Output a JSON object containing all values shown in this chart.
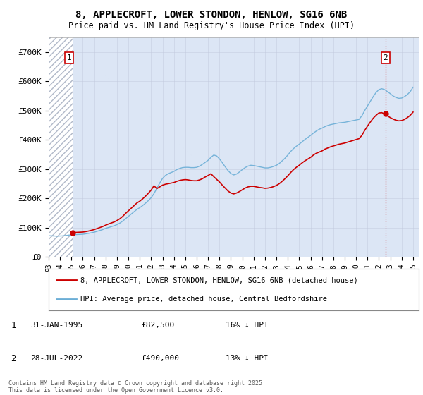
{
  "title_line1": "8, APPLECROFT, LOWER STONDON, HENLOW, SG16 6NB",
  "title_line2": "Price paid vs. HM Land Registry's House Price Index (HPI)",
  "background_color": "#ffffff",
  "plot_bg_color": "#dce6f5",
  "sale1_date": 1995.08,
  "sale1_price": 82500,
  "sale2_date": 2022.57,
  "sale2_price": 490000,
  "legend_line1": "8, APPLECROFT, LOWER STONDON, HENLOW, SG16 6NB (detached house)",
  "legend_line2": "HPI: Average price, detached house, Central Bedfordshire",
  "footer": "Contains HM Land Registry data © Crown copyright and database right 2025.\nThis data is licensed under the Open Government Licence v3.0.",
  "red_line_color": "#cc0000",
  "blue_line_color": "#6baed6",
  "ylim": [
    0,
    750000
  ],
  "yticks": [
    0,
    100000,
    200000,
    300000,
    400000,
    500000,
    600000,
    700000
  ],
  "ytick_labels": [
    "£0",
    "£100K",
    "£200K",
    "£300K",
    "£400K",
    "£500K",
    "£600K",
    "£700K"
  ],
  "hpi_data": [
    [
      1993.0,
      72000
    ],
    [
      1993.25,
      71500
    ],
    [
      1993.5,
      71000
    ],
    [
      1993.75,
      70500
    ],
    [
      1994.0,
      71000
    ],
    [
      1994.25,
      71500
    ],
    [
      1994.5,
      72500
    ],
    [
      1994.75,
      74000
    ],
    [
      1995.0,
      75000
    ],
    [
      1995.25,
      75500
    ],
    [
      1995.5,
      76000
    ],
    [
      1995.75,
      76500
    ],
    [
      1996.0,
      77000
    ],
    [
      1996.25,
      78500
    ],
    [
      1996.5,
      80000
    ],
    [
      1996.75,
      82000
    ],
    [
      1997.0,
      84000
    ],
    [
      1997.25,
      87000
    ],
    [
      1997.5,
      90000
    ],
    [
      1997.75,
      93000
    ],
    [
      1998.0,
      97000
    ],
    [
      1998.25,
      100000
    ],
    [
      1998.5,
      103000
    ],
    [
      1998.75,
      106000
    ],
    [
      1999.0,
      110000
    ],
    [
      1999.25,
      115000
    ],
    [
      1999.5,
      122000
    ],
    [
      1999.75,
      130000
    ],
    [
      2000.0,
      138000
    ],
    [
      2000.25,
      146000
    ],
    [
      2000.5,
      154000
    ],
    [
      2000.75,
      162000
    ],
    [
      2001.0,
      168000
    ],
    [
      2001.25,
      175000
    ],
    [
      2001.5,
      183000
    ],
    [
      2001.75,
      192000
    ],
    [
      2002.0,
      202000
    ],
    [
      2002.25,
      216000
    ],
    [
      2002.5,
      234000
    ],
    [
      2002.75,
      252000
    ],
    [
      2003.0,
      268000
    ],
    [
      2003.25,
      278000
    ],
    [
      2003.5,
      284000
    ],
    [
      2003.75,
      288000
    ],
    [
      2004.0,
      292000
    ],
    [
      2004.25,
      298000
    ],
    [
      2004.5,
      302000
    ],
    [
      2004.75,
      305000
    ],
    [
      2005.0,
      306000
    ],
    [
      2005.25,
      306000
    ],
    [
      2005.5,
      305000
    ],
    [
      2005.75,
      305000
    ],
    [
      2006.0,
      306000
    ],
    [
      2006.25,
      310000
    ],
    [
      2006.5,
      316000
    ],
    [
      2006.75,
      323000
    ],
    [
      2007.0,
      330000
    ],
    [
      2007.25,
      340000
    ],
    [
      2007.5,
      348000
    ],
    [
      2007.75,
      345000
    ],
    [
      2008.0,
      335000
    ],
    [
      2008.25,
      322000
    ],
    [
      2008.5,
      308000
    ],
    [
      2008.75,
      295000
    ],
    [
      2009.0,
      285000
    ],
    [
      2009.25,
      280000
    ],
    [
      2009.5,
      283000
    ],
    [
      2009.75,
      290000
    ],
    [
      2010.0,
      298000
    ],
    [
      2010.25,
      305000
    ],
    [
      2010.5,
      310000
    ],
    [
      2010.75,
      313000
    ],
    [
      2011.0,
      312000
    ],
    [
      2011.25,
      310000
    ],
    [
      2011.5,
      308000
    ],
    [
      2011.75,
      306000
    ],
    [
      2012.0,
      304000
    ],
    [
      2012.25,
      304000
    ],
    [
      2012.5,
      306000
    ],
    [
      2012.75,
      309000
    ],
    [
      2013.0,
      313000
    ],
    [
      2013.25,
      319000
    ],
    [
      2013.5,
      328000
    ],
    [
      2013.75,
      337000
    ],
    [
      2014.0,
      348000
    ],
    [
      2014.25,
      360000
    ],
    [
      2014.5,
      370000
    ],
    [
      2014.75,
      378000
    ],
    [
      2015.0,
      385000
    ],
    [
      2015.25,
      393000
    ],
    [
      2015.5,
      401000
    ],
    [
      2015.75,
      408000
    ],
    [
      2016.0,
      415000
    ],
    [
      2016.25,
      423000
    ],
    [
      2016.5,
      430000
    ],
    [
      2016.75,
      436000
    ],
    [
      2017.0,
      440000
    ],
    [
      2017.25,
      445000
    ],
    [
      2017.5,
      449000
    ],
    [
      2017.75,
      452000
    ],
    [
      2018.0,
      454000
    ],
    [
      2018.25,
      456000
    ],
    [
      2018.5,
      458000
    ],
    [
      2018.75,
      459000
    ],
    [
      2019.0,
      460000
    ],
    [
      2019.25,
      462000
    ],
    [
      2019.5,
      464000
    ],
    [
      2019.75,
      466000
    ],
    [
      2020.0,
      468000
    ],
    [
      2020.25,
      470000
    ],
    [
      2020.5,
      482000
    ],
    [
      2020.75,
      500000
    ],
    [
      2021.0,
      516000
    ],
    [
      2021.25,
      532000
    ],
    [
      2021.5,
      548000
    ],
    [
      2021.75,
      562000
    ],
    [
      2022.0,
      572000
    ],
    [
      2022.25,
      575000
    ],
    [
      2022.5,
      572000
    ],
    [
      2022.75,
      565000
    ],
    [
      2023.0,
      558000
    ],
    [
      2023.25,
      550000
    ],
    [
      2023.5,
      545000
    ],
    [
      2023.75,
      542000
    ],
    [
      2024.0,
      543000
    ],
    [
      2024.25,
      548000
    ],
    [
      2024.5,
      555000
    ],
    [
      2024.75,
      565000
    ],
    [
      2025.0,
      580000
    ]
  ],
  "red_data": [
    [
      1995.08,
      82500
    ],
    [
      1995.25,
      83000
    ],
    [
      1995.5,
      83500
    ],
    [
      1995.75,
      84000
    ],
    [
      1996.0,
      84500
    ],
    [
      1996.25,
      86000
    ],
    [
      1996.5,
      88000
    ],
    [
      1996.75,
      90500
    ],
    [
      1997.0,
      93000
    ],
    [
      1997.25,
      96500
    ],
    [
      1997.5,
      100000
    ],
    [
      1997.75,
      103500
    ],
    [
      1998.0,
      108000
    ],
    [
      1998.25,
      112000
    ],
    [
      1998.5,
      115500
    ],
    [
      1998.75,
      119000
    ],
    [
      1999.0,
      124000
    ],
    [
      1999.25,
      130000
    ],
    [
      1999.5,
      138000
    ],
    [
      1999.75,
      148000
    ],
    [
      2000.0,
      157000
    ],
    [
      2000.25,
      166000
    ],
    [
      2000.5,
      175000
    ],
    [
      2000.75,
      184000
    ],
    [
      2001.0,
      190000
    ],
    [
      2001.25,
      198000
    ],
    [
      2001.5,
      207000
    ],
    [
      2001.75,
      217000
    ],
    [
      2002.0,
      228000
    ],
    [
      2002.25,
      243000
    ],
    [
      2002.5,
      233000
    ],
    [
      2002.75,
      239000
    ],
    [
      2003.0,
      245000
    ],
    [
      2003.25,
      248000
    ],
    [
      2003.5,
      250000
    ],
    [
      2003.75,
      252000
    ],
    [
      2004.0,
      254000
    ],
    [
      2004.25,
      258000
    ],
    [
      2004.5,
      261000
    ],
    [
      2004.75,
      263000
    ],
    [
      2005.0,
      264000
    ],
    [
      2005.25,
      263000
    ],
    [
      2005.5,
      261000
    ],
    [
      2005.75,
      260000
    ],
    [
      2006.0,
      260000
    ],
    [
      2006.25,
      263000
    ],
    [
      2006.5,
      267000
    ],
    [
      2006.75,
      273000
    ],
    [
      2007.0,
      278000
    ],
    [
      2007.25,
      284000
    ],
    [
      2007.5,
      274000
    ],
    [
      2007.75,
      265000
    ],
    [
      2008.0,
      256000
    ],
    [
      2008.25,
      245000
    ],
    [
      2008.5,
      235000
    ],
    [
      2008.75,
      225000
    ],
    [
      2009.0,
      218000
    ],
    [
      2009.25,
      215000
    ],
    [
      2009.5,
      218000
    ],
    [
      2009.75,
      223000
    ],
    [
      2010.0,
      229000
    ],
    [
      2010.25,
      235000
    ],
    [
      2010.5,
      239000
    ],
    [
      2010.75,
      241000
    ],
    [
      2011.0,
      241000
    ],
    [
      2011.25,
      239000
    ],
    [
      2011.5,
      237000
    ],
    [
      2011.75,
      236000
    ],
    [
      2012.0,
      234000
    ],
    [
      2012.25,
      235000
    ],
    [
      2012.5,
      237000
    ],
    [
      2012.75,
      240000
    ],
    [
      2013.0,
      244000
    ],
    [
      2013.25,
      250000
    ],
    [
      2013.5,
      258000
    ],
    [
      2013.75,
      267000
    ],
    [
      2014.0,
      277000
    ],
    [
      2014.25,
      288000
    ],
    [
      2014.5,
      298000
    ],
    [
      2014.75,
      306000
    ],
    [
      2015.0,
      313000
    ],
    [
      2015.25,
      321000
    ],
    [
      2015.5,
      328000
    ],
    [
      2015.75,
      334000
    ],
    [
      2016.0,
      340000
    ],
    [
      2016.25,
      348000
    ],
    [
      2016.5,
      354000
    ],
    [
      2016.75,
      358000
    ],
    [
      2017.0,
      362000
    ],
    [
      2017.25,
      368000
    ],
    [
      2017.5,
      372000
    ],
    [
      2017.75,
      376000
    ],
    [
      2018.0,
      379000
    ],
    [
      2018.25,
      382000
    ],
    [
      2018.5,
      385000
    ],
    [
      2018.75,
      387000
    ],
    [
      2019.0,
      389000
    ],
    [
      2019.25,
      392000
    ],
    [
      2019.5,
      395000
    ],
    [
      2019.75,
      398000
    ],
    [
      2020.0,
      401000
    ],
    [
      2020.25,
      404000
    ],
    [
      2020.5,
      415000
    ],
    [
      2020.75,
      432000
    ],
    [
      2021.0,
      447000
    ],
    [
      2021.25,
      461000
    ],
    [
      2021.5,
      474000
    ],
    [
      2021.75,
      484000
    ],
    [
      2022.0,
      492000
    ],
    [
      2022.25,
      493000
    ],
    [
      2022.5,
      489000
    ],
    [
      2022.57,
      490000
    ],
    [
      2022.75,
      482000
    ],
    [
      2023.0,
      476000
    ],
    [
      2023.25,
      471000
    ],
    [
      2023.5,
      467000
    ],
    [
      2023.75,
      465000
    ],
    [
      2024.0,
      466000
    ],
    [
      2024.25,
      470000
    ],
    [
      2024.5,
      476000
    ],
    [
      2024.75,
      484000
    ],
    [
      2025.0,
      495000
    ]
  ],
  "xmin": 1993.0,
  "xmax": 2025.5,
  "ann1_date": "31-JAN-1995",
  "ann1_price": "£82,500",
  "ann1_hpi": "16% ↓ HPI",
  "ann2_date": "28-JUL-2022",
  "ann2_price": "£490,000",
  "ann2_hpi": "13% ↓ HPI"
}
